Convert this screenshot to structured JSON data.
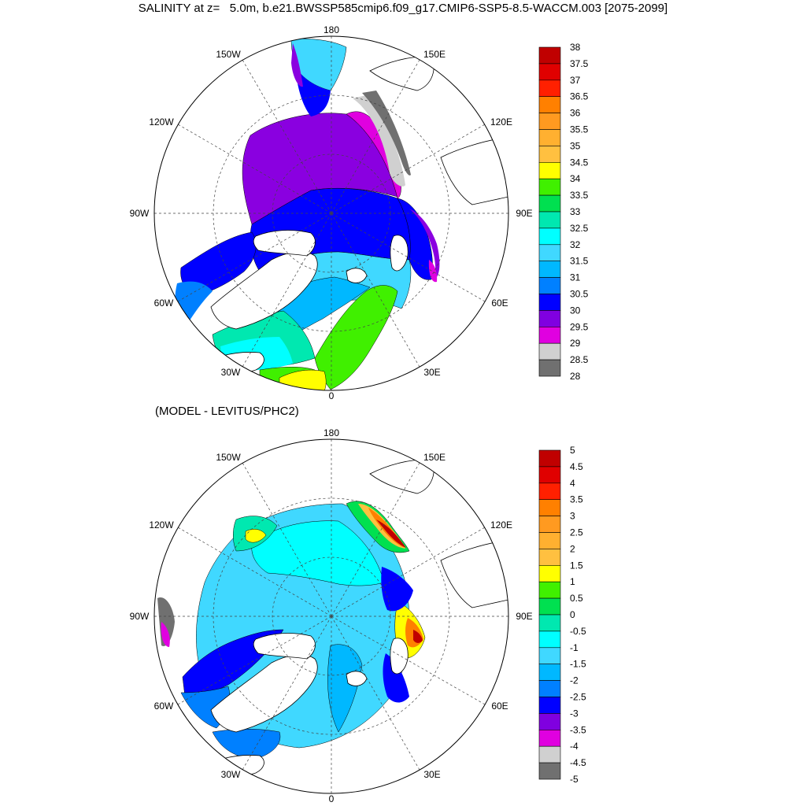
{
  "title": "SALINITY at z=   5.0m, b.e21.BWSSP585cmip6.f09_g17.CMIP6-SSP5-8.5-WACCM.003 [2075-2099]",
  "subtitle": "(MODEL - LEVITUS/PHC2)",
  "meridian_labels": {
    "l180": "180",
    "l150e": "150E",
    "l120e": "120E",
    "l90e": "90E",
    "l60e": "60E",
    "l30e": "30E",
    "l0": "0",
    "l30w": "30W",
    "l60w": "60W",
    "l90w": "90W",
    "l120w": "120W",
    "l150w": "150W"
  },
  "colorbar_top": {
    "labels": [
      "38",
      "37.5",
      "37",
      "36.5",
      "36",
      "35.5",
      "35",
      "34.5",
      "34",
      "33.5",
      "33",
      "32.5",
      "32",
      "31.5",
      "31",
      "30.5",
      "30",
      "29.5",
      "29",
      "28.5",
      "28"
    ],
    "colors": [
      "#c00000",
      "#e00000",
      "#ff2000",
      "#ff8000",
      "#ff9a20",
      "#ffb030",
      "#ffc040",
      "#ffff00",
      "#40f000",
      "#00e050",
      "#00e8b0",
      "#00ffff",
      "#40d8ff",
      "#00b8ff",
      "#0080ff",
      "#0000ff",
      "#8000e0",
      "#e000e0",
      "#d0d0d0",
      "#707070"
    ]
  },
  "colorbar_bottom": {
    "labels": [
      "5",
      "4.5",
      "4",
      "3.5",
      "3",
      "2.5",
      "2",
      "1.5",
      "1",
      "0.5",
      "0",
      "-0.5",
      "-1",
      "-1.5",
      "-2",
      "-2.5",
      "-3",
      "-3.5",
      "-4",
      "-4.5",
      "-5"
    ],
    "colors": [
      "#c00000",
      "#e00000",
      "#ff2000",
      "#ff8000",
      "#ff9a20",
      "#ffb030",
      "#ffc040",
      "#ffff00",
      "#40f000",
      "#00e050",
      "#00e8b0",
      "#00ffff",
      "#40d8ff",
      "#00b8ff",
      "#0080ff",
      "#0000ff",
      "#8000e0",
      "#e000e0",
      "#d0d0d0",
      "#707070"
    ]
  }
}
